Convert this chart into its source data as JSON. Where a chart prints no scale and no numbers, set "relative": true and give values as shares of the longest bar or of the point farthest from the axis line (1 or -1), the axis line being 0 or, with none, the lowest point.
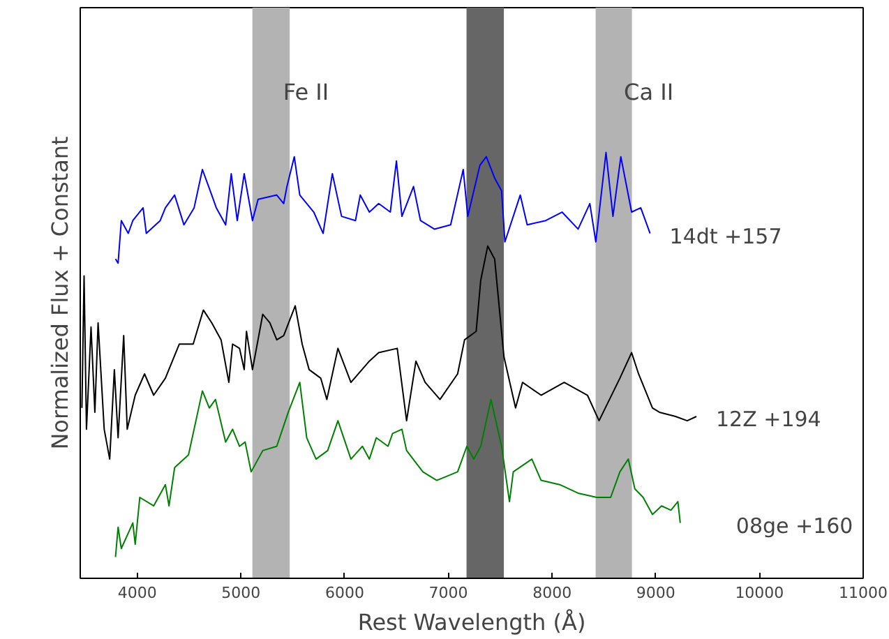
{
  "chart_data": {
    "type": "line",
    "relative": true,
    "xlabel": "Rest Wavelength (Å)",
    "ylabel": "Normalized Flux + Constant",
    "xlim": [
      3450,
      11000
    ],
    "xticks": [
      4000,
      5000,
      6000,
      7000,
      8000,
      9000,
      10000,
      11000
    ],
    "grid": false,
    "bands": [
      {
        "axis": "x",
        "from": 5110,
        "to": 5470,
        "label": "Fe II",
        "color": "#b3b3b3"
      },
      {
        "axis": "x",
        "from": 7175,
        "to": 7535,
        "label": null,
        "color": "#666666"
      },
      {
        "axis": "x",
        "from": 8420,
        "to": 8770,
        "label": "Ca II",
        "color": "#b3b3b3"
      }
    ],
    "series": [
      {
        "name": "14dt +157",
        "color": "#0000ff",
        "x": [
          3790,
          3815,
          3846,
          3913,
          3957,
          4056,
          4087,
          4221,
          4271,
          4360,
          4450,
          4548,
          4628,
          4718,
          4762,
          4852,
          4906,
          4964,
          5031,
          5111,
          5165,
          5345,
          5412,
          5443,
          5514,
          5567,
          5702,
          5792,
          5881,
          5970,
          6104,
          6150,
          6238,
          6328,
          6440,
          6499,
          6552,
          6664,
          6731,
          6865,
          7022,
          7143,
          7187,
          7304,
          7366,
          7446,
          7513,
          7545,
          7693,
          7760,
          7939,
          8096,
          8251,
          8364,
          8422,
          8520,
          8587,
          8663,
          8767,
          8855,
          8945
        ],
        "values": [
          0.75,
          0.74,
          0.84,
          0.81,
          0.84,
          0.87,
          0.81,
          0.84,
          0.87,
          0.9,
          0.83,
          0.87,
          0.96,
          0.9,
          0.87,
          0.83,
          0.95,
          0.84,
          0.95,
          0.84,
          0.89,
          0.9,
          0.88,
          0.92,
          0.99,
          0.9,
          0.86,
          0.81,
          0.95,
          0.85,
          0.84,
          0.9,
          0.86,
          0.88,
          0.86,
          0.98,
          0.85,
          0.92,
          0.84,
          0.82,
          0.83,
          0.96,
          0.85,
          0.97,
          0.99,
          0.94,
          0.91,
          0.79,
          0.9,
          0.83,
          0.84,
          0.86,
          0.82,
          0.88,
          0.79,
          1.0,
          0.85,
          0.99,
          0.86,
          0.87,
          0.81
        ]
      },
      {
        "name": "12Z +194",
        "color": "#000000",
        "x": [
          3466,
          3487,
          3510,
          3554,
          3591,
          3622,
          3681,
          3734,
          3779,
          3815,
          3869,
          3903,
          3980,
          4070,
          4158,
          4271,
          4405,
          4539,
          4637,
          4718,
          4808,
          4883,
          4919,
          4986,
          5031,
          5053,
          5111,
          5210,
          5278,
          5345,
          5412,
          5523,
          5590,
          5657,
          5769,
          5828,
          5935,
          6060,
          6238,
          6328,
          6507,
          6597,
          6687,
          6776,
          6919,
          7089,
          7156,
          7268,
          7312,
          7379,
          7446,
          7536,
          7648,
          7715,
          7894,
          8117,
          8341,
          8453,
          8654,
          8767,
          8834,
          8968,
          9035,
          9191,
          9303,
          9392
        ],
        "values": [
          0.4,
          0.71,
          0.35,
          0.59,
          0.39,
          0.6,
          0.35,
          0.28,
          0.49,
          0.33,
          0.57,
          0.35,
          0.43,
          0.48,
          0.43,
          0.47,
          0.55,
          0.55,
          0.63,
          0.6,
          0.56,
          0.46,
          0.55,
          0.54,
          0.49,
          0.58,
          0.49,
          0.62,
          0.6,
          0.56,
          0.57,
          0.64,
          0.55,
          0.49,
          0.47,
          0.42,
          0.54,
          0.46,
          0.51,
          0.53,
          0.54,
          0.37,
          0.51,
          0.46,
          0.42,
          0.48,
          0.56,
          0.58,
          0.7,
          0.78,
          0.75,
          0.52,
          0.4,
          0.46,
          0.43,
          0.46,
          0.43,
          0.37,
          0.47,
          0.53,
          0.48,
          0.4,
          0.39,
          0.38,
          0.37,
          0.38
        ]
      },
      {
        "name": "08ge +160",
        "color": "#008000",
        "x": [
          3790,
          3815,
          3846,
          3957,
          3980,
          4024,
          4158,
          4271,
          4306,
          4360,
          4494,
          4628,
          4695,
          4754,
          4852,
          4919,
          4986,
          5040,
          5098,
          5210,
          5345,
          5456,
          5567,
          5634,
          5724,
          5836,
          5935,
          6060,
          6171,
          6238,
          6305,
          6418,
          6462,
          6552,
          6597,
          6754,
          6888,
          7089,
          7178,
          7245,
          7312,
          7411,
          7513,
          7589,
          7626,
          7805,
          7894,
          8073,
          8251,
          8431,
          8565,
          8654,
          8735,
          8798,
          8878,
          8968,
          9056,
          9146,
          9213,
          9236
        ],
        "values": [
          0.05,
          0.12,
          0.07,
          0.13,
          0.08,
          0.19,
          0.17,
          0.22,
          0.17,
          0.26,
          0.29,
          0.44,
          0.4,
          0.42,
          0.32,
          0.35,
          0.31,
          0.32,
          0.25,
          0.3,
          0.31,
          0.39,
          0.46,
          0.33,
          0.28,
          0.3,
          0.37,
          0.28,
          0.31,
          0.28,
          0.33,
          0.31,
          0.34,
          0.35,
          0.3,
          0.25,
          0.23,
          0.25,
          0.31,
          0.28,
          0.31,
          0.42,
          0.31,
          0.18,
          0.25,
          0.28,
          0.23,
          0.22,
          0.2,
          0.19,
          0.19,
          0.25,
          0.28,
          0.21,
          0.19,
          0.15,
          0.17,
          0.16,
          0.18,
          0.13
        ]
      }
    ]
  }
}
